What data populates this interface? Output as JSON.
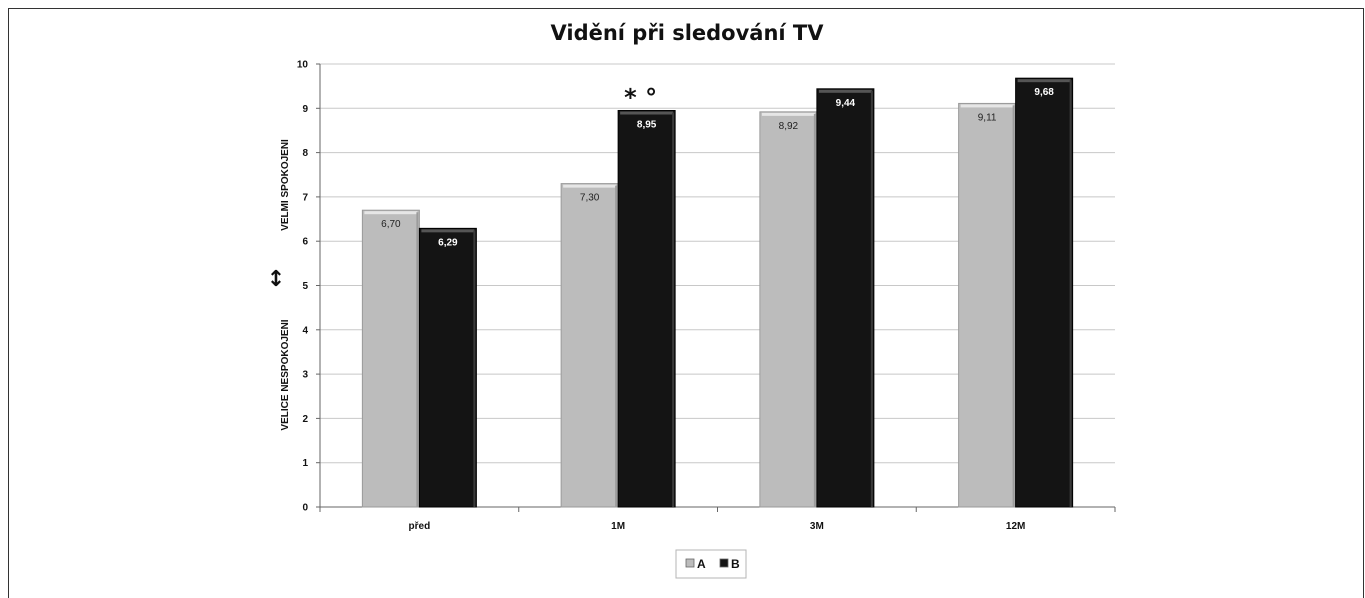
{
  "chart_data": {
    "type": "bar",
    "title": "Vidění při sledování TV",
    "categories": [
      "před",
      "1M",
      "3M",
      "12M"
    ],
    "series": [
      {
        "name": "A",
        "values": [
          6.7,
          7.3,
          8.92,
          9.11
        ],
        "labels": [
          "6,70",
          "7,30",
          "8,92",
          "9,11"
        ],
        "color": "#bdbdbd"
      },
      {
        "name": "B",
        "values": [
          6.29,
          8.95,
          9.44,
          9.68
        ],
        "labels": [
          "6,29",
          "8,95",
          "9,44",
          "9,68"
        ],
        "color": "#111111"
      }
    ],
    "ylim": [
      0,
      10
    ],
    "yticks": [
      "0",
      "1",
      "2",
      "3",
      "4",
      "5",
      "6",
      "7",
      "8",
      "9",
      "10"
    ],
    "ylabel_top": "VELMI  SPOKOJENI",
    "ylabel_bottom": "VELICE  NESPOKOJENI",
    "ylabel_arrow": "↕",
    "annotation": {
      "text": "* °",
      "category": "1M"
    },
    "grid": true,
    "legend_position": "bottom"
  }
}
